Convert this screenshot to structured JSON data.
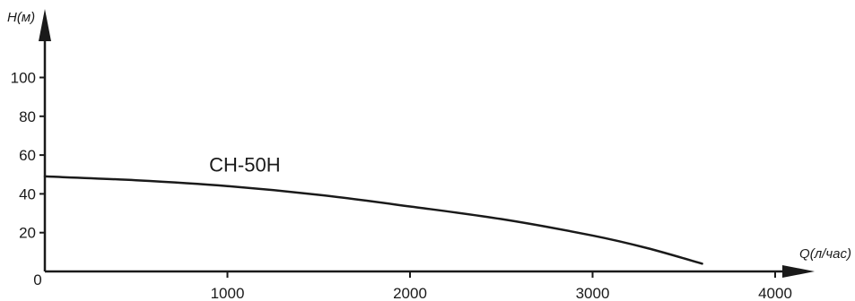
{
  "chart_data": {
    "type": "line",
    "title": "",
    "xlabel": "Q(л/час)",
    "ylabel": "H(м)",
    "xlim": [
      0,
      4000
    ],
    "ylim": [
      0,
      100
    ],
    "x_ticks": [
      1000,
      2000,
      3000,
      4000
    ],
    "y_ticks": [
      0,
      20,
      40,
      60,
      80,
      100
    ],
    "origin_label": "0",
    "grid": false,
    "legend": "none",
    "series": [
      {
        "name": "CH-50H",
        "x": [
          0,
          500,
          1000,
          1500,
          2000,
          2500,
          3000,
          3300,
          3600
        ],
        "y": [
          49,
          47,
          44,
          39.5,
          33.5,
          27,
          18.5,
          12,
          4
        ]
      }
    ],
    "colors": {
      "axis": "#1a1a1a",
      "line": "#1a1a1a"
    }
  }
}
